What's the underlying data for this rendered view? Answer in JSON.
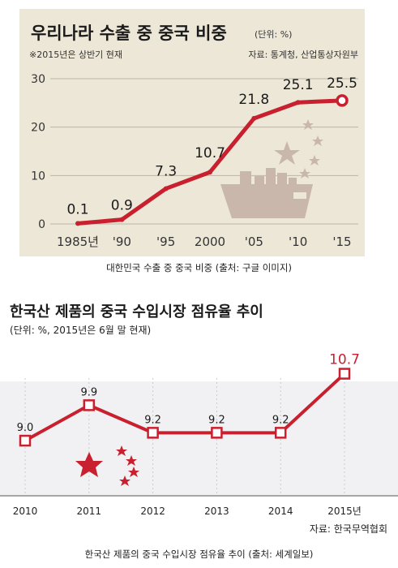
{
  "chart_data": [
    {
      "type": "line",
      "title": "우리나라 수출 중 중국 비중",
      "unit": "(단위: %)",
      "note": "※2015년은 상반기 현재",
      "source": "자료: 통계청, 산업통상자원부",
      "x": [
        "1985년",
        "'90",
        "'95",
        "2000",
        "'05",
        "'10",
        "'15"
      ],
      "values": [
        0.1,
        0.9,
        7.3,
        10.7,
        21.8,
        25.1,
        25.5
      ],
      "value_labels": [
        "0.1",
        "0.9",
        "7.3",
        "10.7",
        "21.8",
        "25.1",
        "25.5"
      ],
      "yticks": [
        "0",
        "10",
        "20",
        "30"
      ],
      "ylim": [
        0,
        30
      ],
      "grid": "horizontal",
      "line_color": "#c8202e",
      "caption": "대한민국 수출 중 중국 비중 (출처: 구글 이미지)"
    },
    {
      "type": "line",
      "title": "한국산 제품의 중국 수입시장 점유율 추이",
      "unit": "(단위: %, 2015년은 6월 말 현재)",
      "source": "자료: 한국무역협회",
      "x": [
        "2010",
        "2011",
        "2012",
        "2013",
        "2014",
        "2015년"
      ],
      "values": [
        9.0,
        9.9,
        9.2,
        9.2,
        9.2,
        10.7
      ],
      "value_labels": [
        "9.0",
        "9.9",
        "9.2",
        "9.2",
        "9.2",
        "10.7"
      ],
      "ylim": [
        7.6,
        11.0
      ],
      "grid": "vertical",
      "line_color": "#c8202e",
      "caption": "한국산 제품의 중국 수입시장 점유율 추이 (출처: 세계일보)"
    }
  ]
}
